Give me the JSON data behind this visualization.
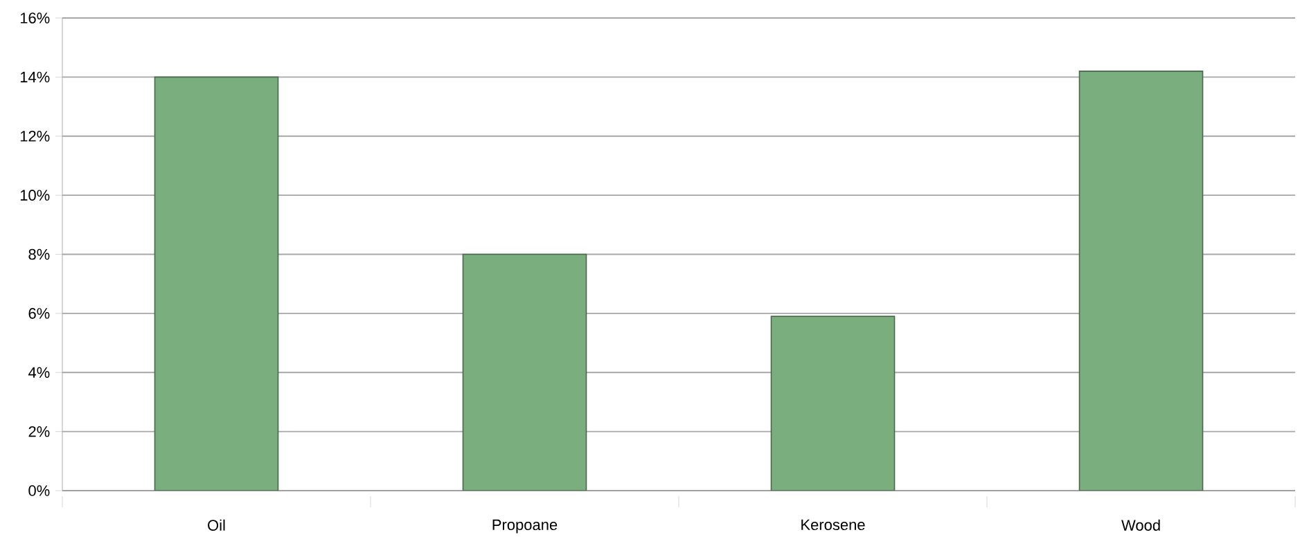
{
  "chart_data": {
    "type": "bar",
    "categories": [
      "Oil",
      "Propoane",
      "Kerosene",
      "Wood"
    ],
    "values": [
      14,
      8,
      5.9,
      14.2
    ],
    "color": "#7aae7e",
    "ylim": [
      0,
      16
    ],
    "yticks": [
      {
        "value": 0,
        "label": "0%"
      },
      {
        "value": 2,
        "label": "2%"
      },
      {
        "value": 4,
        "label": "4%"
      },
      {
        "value": 6,
        "label": "6%"
      },
      {
        "value": 8,
        "label": "8%"
      },
      {
        "value": 10,
        "label": "10%"
      },
      {
        "value": 12,
        "label": "12%"
      },
      {
        "value": 14,
        "label": "14%"
      },
      {
        "value": 16,
        "label": "16%"
      }
    ],
    "grid": "y"
  }
}
